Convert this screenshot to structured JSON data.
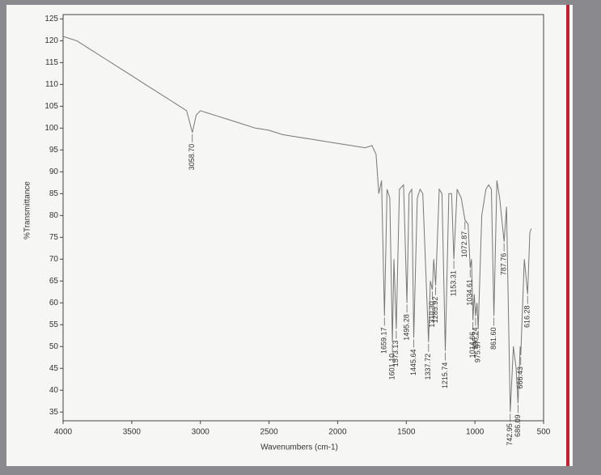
{
  "chart_data": {
    "type": "line",
    "x_label": "Wavenumbers (cm-1)",
    "y_label": "%Transmittance",
    "xlim": [
      4000,
      500
    ],
    "ylim": [
      33,
      126
    ],
    "xticks": [
      4000,
      3500,
      3000,
      2500,
      2000,
      1500,
      1000,
      500
    ],
    "yticks": [
      35,
      40,
      45,
      50,
      55,
      60,
      65,
      70,
      75,
      80,
      85,
      90,
      95,
      100,
      105,
      110,
      115,
      120,
      125
    ],
    "color": "#777777",
    "x": [
      4000,
      3900,
      3800,
      3700,
      3600,
      3500,
      3400,
      3300,
      3200,
      3100,
      3058.7,
      3030,
      3000,
      2900,
      2800,
      2700,
      2600,
      2500,
      2400,
      2300,
      2200,
      2100,
      2000,
      1900,
      1800,
      1750,
      1720,
      1700,
      1680,
      1659.17,
      1640,
      1620,
      1601.1,
      1590,
      1573.13,
      1550,
      1520,
      1495.28,
      1480,
      1460,
      1445.64,
      1420,
      1400,
      1380,
      1337.72,
      1325,
      1310.3,
      1300,
      1285.92,
      1260,
      1240,
      1215.74,
      1190,
      1170,
      1153.31,
      1130,
      1100,
      1072.87,
      1050,
      1034.61,
      1025,
      1014.66,
      1005,
      995.24,
      985,
      975.97,
      950,
      920,
      900,
      880,
      861.6,
      840,
      820,
      787.76,
      770,
      742.95,
      720,
      700,
      686.09,
      670,
      666.43,
      640,
      616.28,
      600,
      590
    ],
    "values": [
      121,
      120,
      118,
      116,
      114,
      112,
      110,
      108,
      106,
      104,
      99,
      103,
      104,
      103,
      102,
      101,
      100,
      99.5,
      98.5,
      98,
      97.5,
      97,
      96.5,
      96,
      95.5,
      96,
      94,
      85,
      88,
      57,
      86,
      84,
      51,
      70,
      54,
      86,
      87,
      60,
      85,
      86,
      52,
      84,
      86,
      85,
      51,
      65,
      63,
      70,
      64,
      86,
      85,
      49,
      85,
      85,
      70,
      86,
      84,
      79,
      78,
      68,
      70,
      56,
      62,
      57,
      60,
      54,
      80,
      86,
      87,
      86,
      57,
      88,
      84,
      74,
      82,
      35,
      50,
      45,
      37,
      50,
      48,
      70,
      62,
      76,
      77
    ],
    "peaks": [
      {
        "value": 3058.7,
        "label": "3058.70"
      },
      {
        "value": 1659.17,
        "label": "1659.17"
      },
      {
        "value": 1601.1,
        "label": "1601.10"
      },
      {
        "value": 1573.13,
        "label": "1573.13"
      },
      {
        "value": 1495.28,
        "label": "1495.28"
      },
      {
        "value": 1445.64,
        "label": "1445.64"
      },
      {
        "value": 1337.72,
        "label": "1337.72"
      },
      {
        "value": 1310.3,
        "label": "1310.30"
      },
      {
        "value": 1285.92,
        "label": "1285.92"
      },
      {
        "value": 1215.74,
        "label": "1215.74"
      },
      {
        "value": 1153.31,
        "label": "1153.31"
      },
      {
        "value": 1072.87,
        "label": "1072.87"
      },
      {
        "value": 1034.61,
        "label": "1034.61"
      },
      {
        "value": 1014.66,
        "label": "1014.66"
      },
      {
        "value": 995.24,
        "label": "995.24"
      },
      {
        "value": 975.97,
        "label": "975.97"
      },
      {
        "value": 861.6,
        "label": "861.60"
      },
      {
        "value": 787.76,
        "label": "787.76"
      },
      {
        "value": 742.95,
        "label": "742.95"
      },
      {
        "value": 686.09,
        "label": "686.09"
      },
      {
        "value": 666.43,
        "label": "666.43"
      },
      {
        "value": 616.28,
        "label": "616.28"
      }
    ]
  }
}
